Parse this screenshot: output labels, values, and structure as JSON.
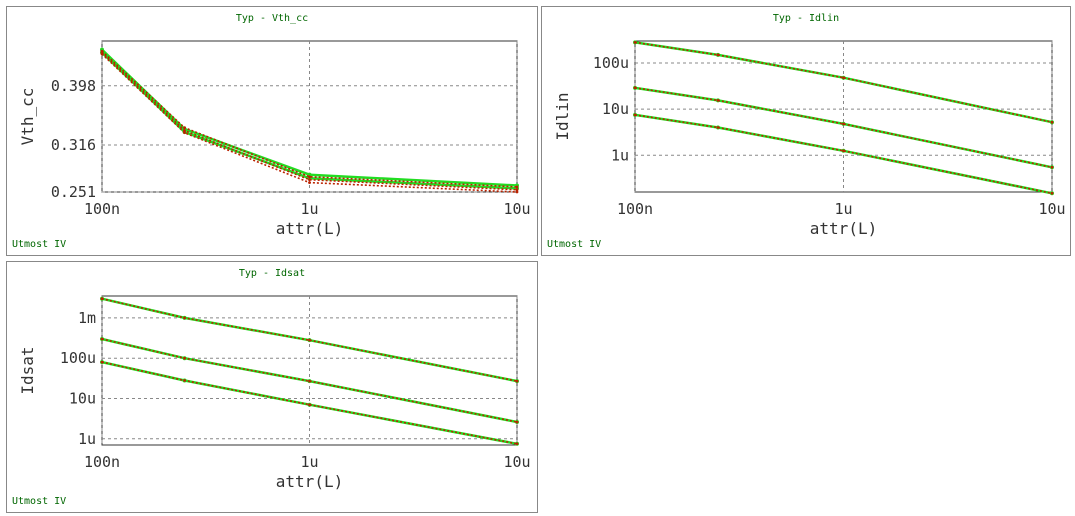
{
  "colors": {
    "title": "#006600",
    "tag": "#006600",
    "axis": "#333333",
    "grid": "#888888",
    "measured": "#22dd22",
    "simulated": "#bb2200",
    "text": "#333333"
  },
  "chart_data": [
    {
      "type": "line",
      "title": "Typ - Vth_cc",
      "footer": "Utmost IV",
      "xlabel": "attr(L)",
      "ylabel": "Vth_cc",
      "xscale": "log",
      "xlim": [
        1e-07,
        1e-05
      ],
      "ylim": [
        0.251,
        0.46
      ],
      "xticks": [
        1e-07,
        1e-06,
        1e-05
      ],
      "xtick_labels": [
        "100n",
        "1u",
        "10u"
      ],
      "yticks": [
        0.251,
        0.316,
        0.398
      ],
      "ytick_labels": [
        "0.251",
        "0.316",
        "0.398"
      ],
      "yscale": "linear",
      "grid": true,
      "x": [
        1e-07,
        2.5e-07,
        1e-06,
        1e-05
      ],
      "series": [
        {
          "role": "measured",
          "values": [
            0.448,
            0.338,
            0.275,
            0.26
          ]
        },
        {
          "role": "measured",
          "values": [
            0.444,
            0.334,
            0.27,
            0.256
          ]
        },
        {
          "role": "simulated",
          "values": [
            0.446,
            0.34,
            0.272,
            0.258
          ]
        },
        {
          "role": "simulated",
          "values": [
            0.444,
            0.336,
            0.268,
            0.254
          ]
        },
        {
          "role": "simulated",
          "values": [
            0.442,
            0.333,
            0.264,
            0.251
          ]
        }
      ]
    },
    {
      "type": "line",
      "title": "Typ - Idlin",
      "footer": "Utmost IV",
      "xlabel": "attr(L)",
      "ylabel": "Idlin",
      "xscale": "log",
      "yscale": "log",
      "xlim": [
        1e-07,
        1e-05
      ],
      "ylim": [
        1.6e-07,
        0.0003
      ],
      "xticks": [
        1e-07,
        1e-06,
        1e-05
      ],
      "xtick_labels": [
        "100n",
        "1u",
        "10u"
      ],
      "yticks": [
        1e-06,
        1e-05,
        0.0001
      ],
      "ytick_labels": [
        "1u",
        "10u",
        "100u"
      ],
      "grid": true,
      "x": [
        1e-07,
        2.5e-07,
        1e-06,
        1e-05
      ],
      "series": [
        {
          "role": "measured",
          "values": [
            0.00028,
            0.00015,
            4.8e-05,
            5.2e-06
          ]
        },
        {
          "role": "simulated",
          "values": [
            0.00028,
            0.00015,
            4.8e-05,
            5.2e-06
          ]
        },
        {
          "role": "measured",
          "values": [
            2.9e-05,
            1.55e-05,
            4.8e-06,
            5.5e-07
          ]
        },
        {
          "role": "simulated",
          "values": [
            2.9e-05,
            1.55e-05,
            4.8e-06,
            5.5e-07
          ]
        },
        {
          "role": "measured",
          "values": [
            7.5e-06,
            4e-06,
            1.25e-06,
            1.5e-07
          ]
        },
        {
          "role": "simulated",
          "values": [
            7.5e-06,
            4e-06,
            1.25e-06,
            1.5e-07
          ]
        }
      ]
    },
    {
      "type": "line",
      "title": "Typ - Idsat",
      "footer": "Utmost IV",
      "xlabel": "attr(L)",
      "ylabel": "Idsat",
      "xscale": "log",
      "yscale": "log",
      "xlim": [
        1e-07,
        1e-05
      ],
      "ylim": [
        7e-07,
        0.0035
      ],
      "xticks": [
        1e-07,
        1e-06,
        1e-05
      ],
      "xtick_labels": [
        "100n",
        "1u",
        "10u"
      ],
      "yticks": [
        1e-06,
        1e-05,
        0.0001,
        0.001
      ],
      "ytick_labels": [
        "1u",
        "10u",
        "100u",
        "1m"
      ],
      "grid": true,
      "x": [
        1e-07,
        2.5e-07,
        1e-06,
        1e-05
      ],
      "series": [
        {
          "role": "measured",
          "values": [
            0.003,
            0.001,
            0.00028,
            2.7e-05
          ]
        },
        {
          "role": "simulated",
          "values": [
            0.003,
            0.001,
            0.00028,
            2.7e-05
          ]
        },
        {
          "role": "measured",
          "values": [
            0.0003,
            0.0001,
            2.7e-05,
            2.6e-06
          ]
        },
        {
          "role": "simulated",
          "values": [
            0.0003,
            0.0001,
            2.7e-05,
            2.6e-06
          ]
        },
        {
          "role": "measured",
          "values": [
            8e-05,
            2.8e-05,
            7e-06,
            7.5e-07
          ]
        },
        {
          "role": "simulated",
          "values": [
            8e-05,
            2.8e-05,
            7e-06,
            7.5e-07
          ]
        }
      ]
    }
  ]
}
